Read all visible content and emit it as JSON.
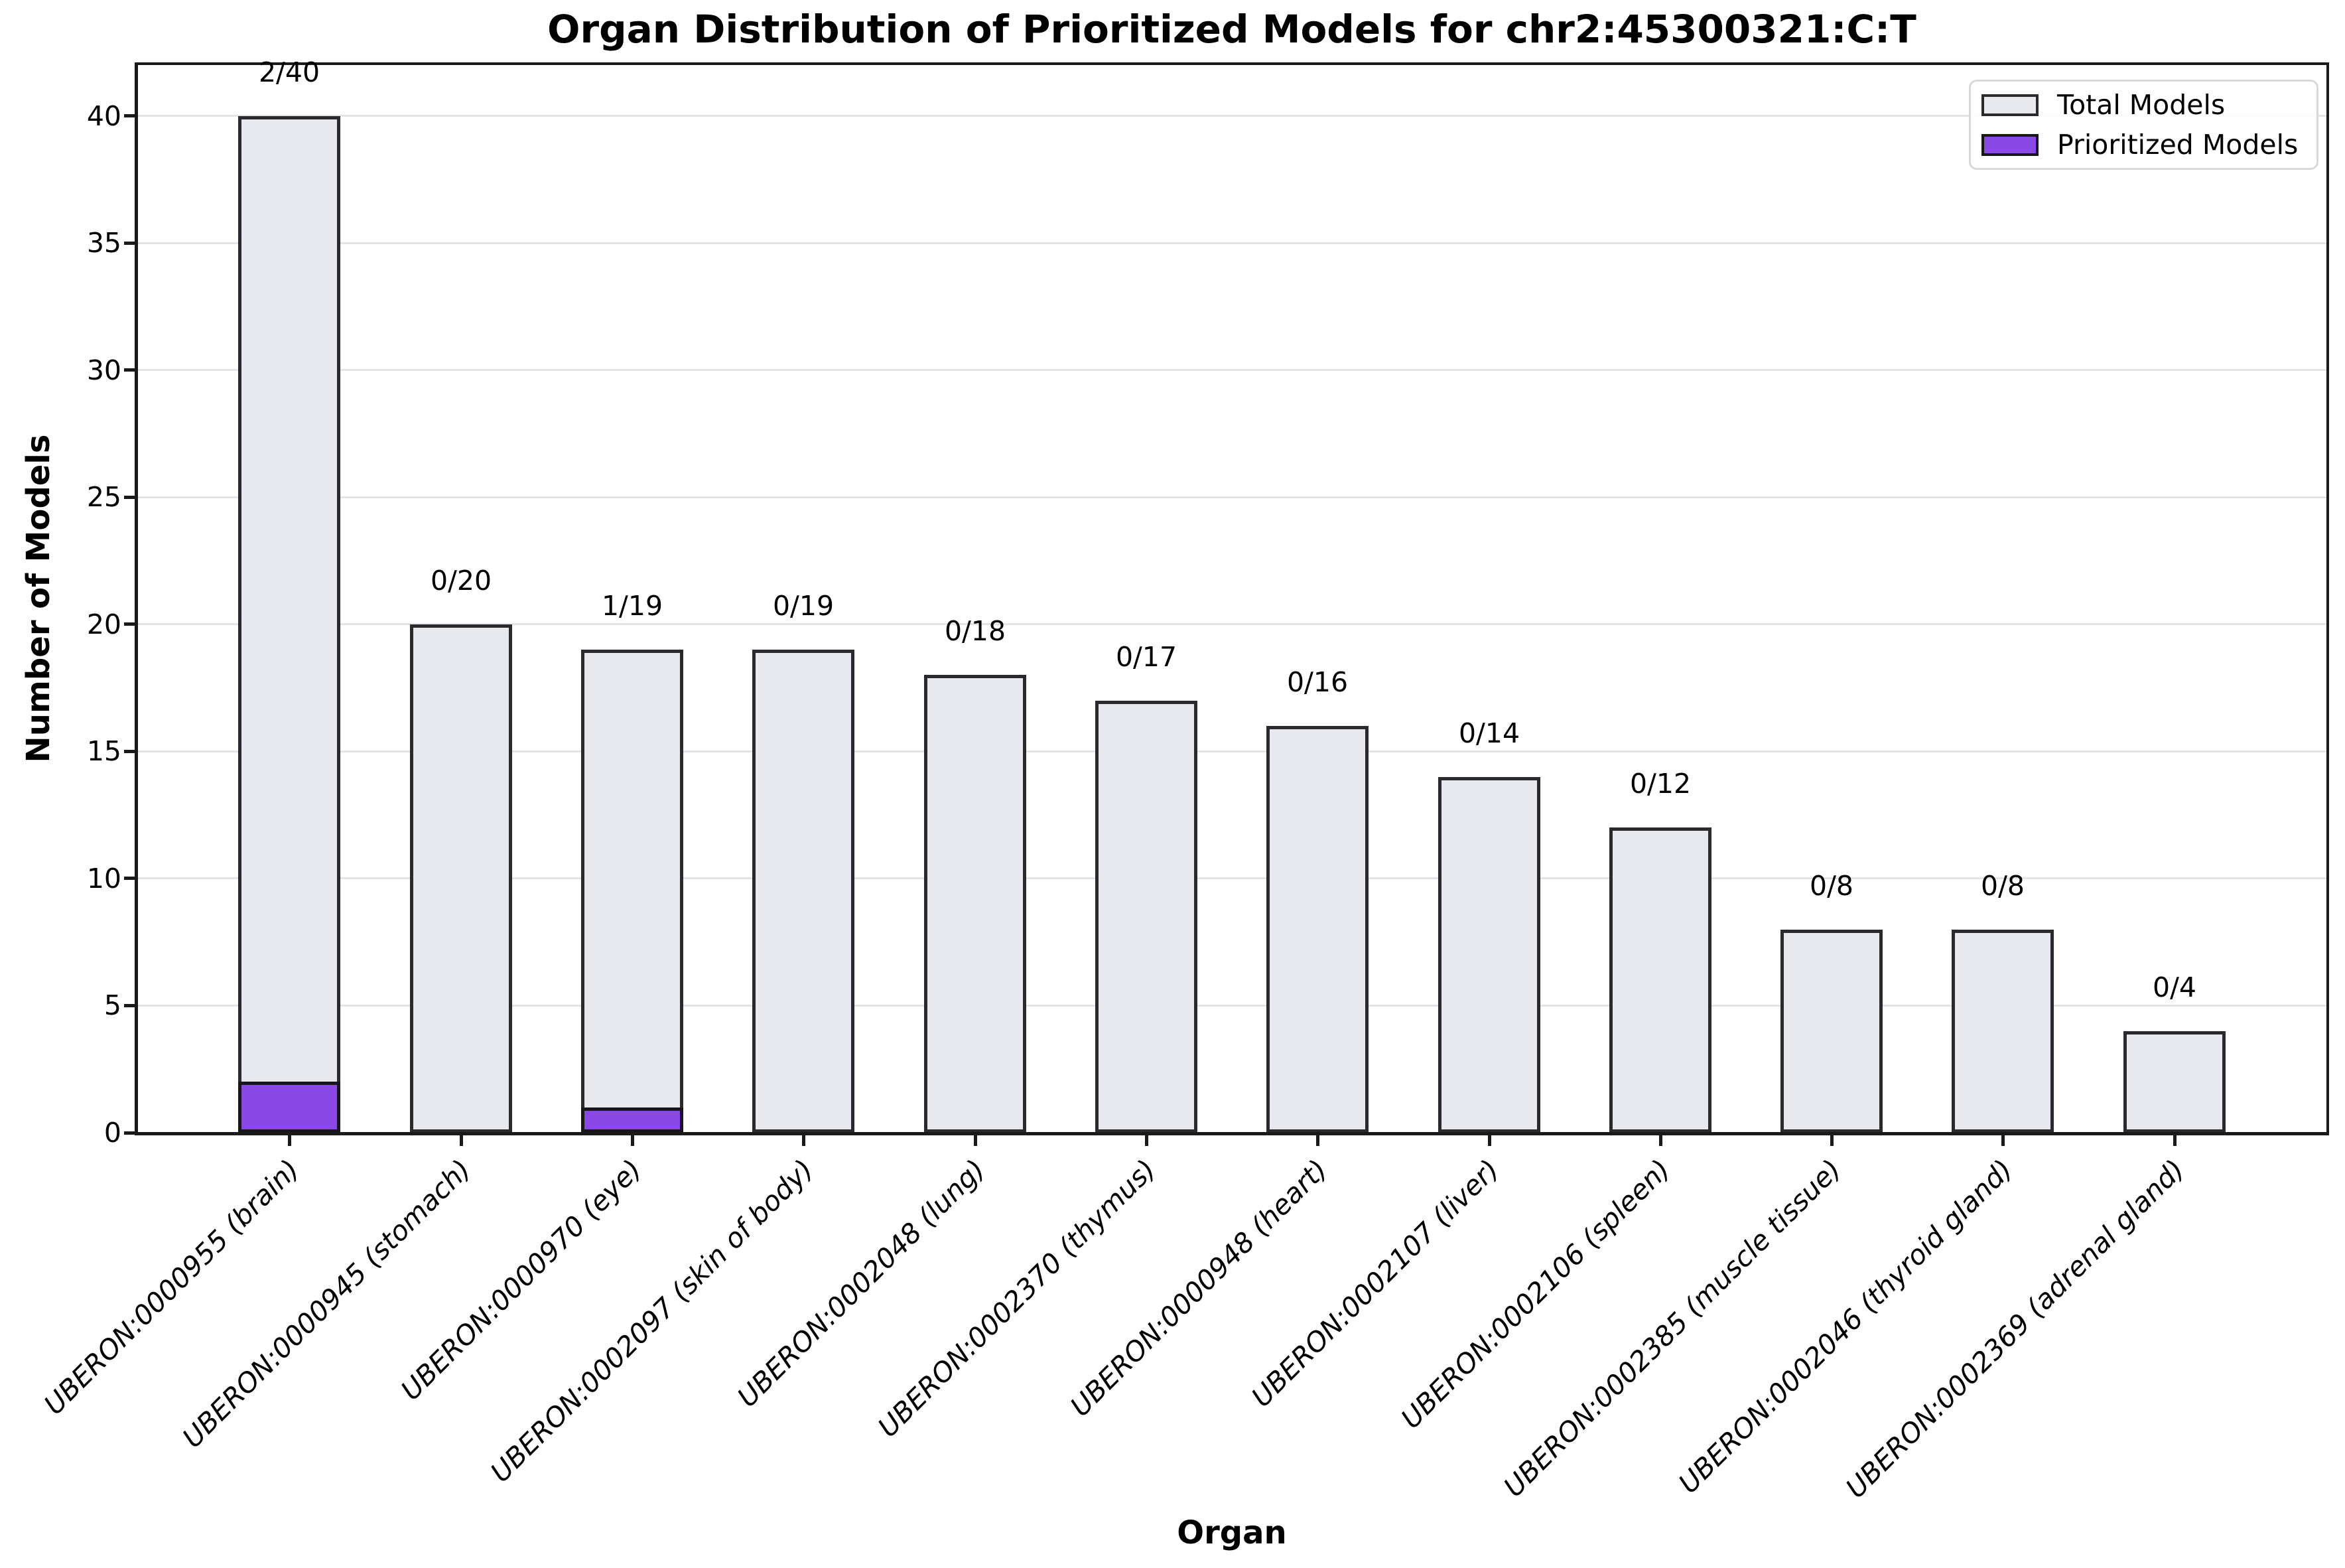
{
  "chart_data": {
    "type": "bar",
    "title": "Organ Distribution of Prioritized Models for chr2:45300321:C:T",
    "xlabel": "Organ",
    "ylabel": "Number of Models",
    "categories": [
      "UBERON:0000955 (brain)",
      "UBERON:0000945 (stomach)",
      "UBERON:0000970 (eye)",
      "UBERON:0002097 (skin of body)",
      "UBERON:0002048 (lung)",
      "UBERON:0002370 (thymus)",
      "UBERON:0000948 (heart)",
      "UBERON:0002107 (liver)",
      "UBERON:0002106 (spleen)",
      "UBERON:0002385 (muscle tissue)",
      "UBERON:0002046 (thyroid gland)",
      "UBERON:0002369 (adrenal gland)"
    ],
    "series": [
      {
        "name": "Total Models",
        "values": [
          40,
          20,
          19,
          19,
          18,
          17,
          16,
          14,
          12,
          8,
          8,
          4
        ]
      },
      {
        "name": "Prioritized Models",
        "values": [
          2,
          0,
          1,
          0,
          0,
          0,
          0,
          0,
          0,
          0,
          0,
          0
        ]
      }
    ],
    "bar_labels": [
      "2/40",
      "0/20",
      "1/19",
      "0/19",
      "0/18",
      "0/17",
      "0/16",
      "0/14",
      "0/12",
      "0/8",
      "0/8",
      "0/4"
    ],
    "yticks": [
      0,
      5,
      10,
      15,
      20,
      25,
      30,
      35,
      40
    ],
    "ylim": [
      0,
      42
    ],
    "grid": true,
    "legend": {
      "position": "upper right",
      "entries": [
        {
          "label": "Total Models",
          "color": "#e8e9ee",
          "edge": "#2a2a2e"
        },
        {
          "label": "Prioritized Models",
          "color": "#8a49e7",
          "edge": "#17171b"
        }
      ]
    },
    "colors": {
      "background": "#ffffff",
      "text": "#000000",
      "spine": "#1a1a1a",
      "grid": "#e4e4e6",
      "bar-fill": "#e8e9ee",
      "bar-edge": "#2a2a2e",
      "prioritized-fill": "#8a49e7",
      "prioritized-edge": "#17171b",
      "legend-border": "#d8d8d8"
    }
  }
}
